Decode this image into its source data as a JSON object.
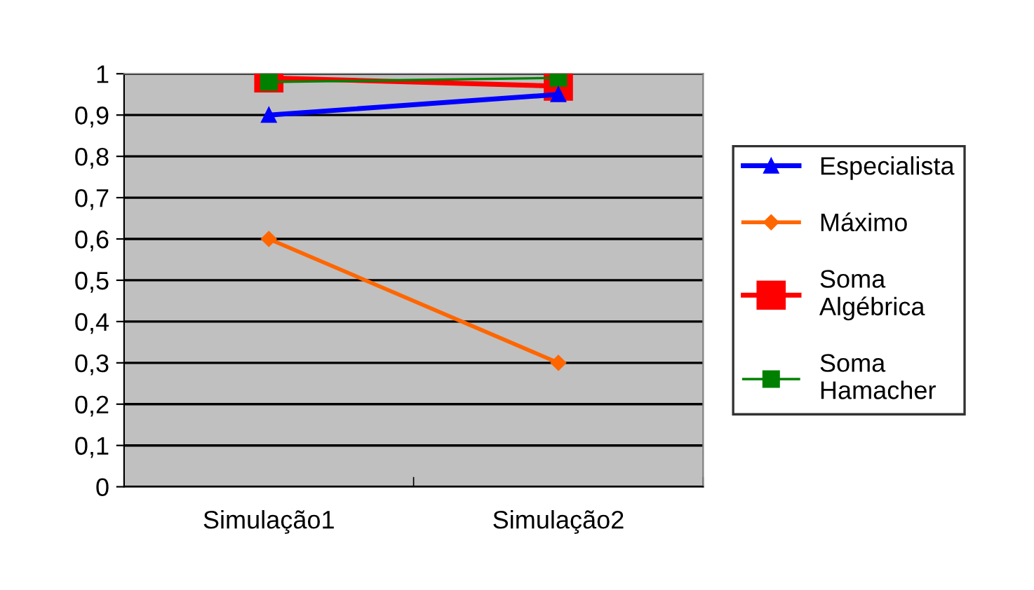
{
  "chart_data": {
    "type": "line",
    "categories": [
      "Simulação1",
      "Simulação2"
    ],
    "series": [
      {
        "name": "Especialista",
        "color": "#0000ff",
        "values": [
          0.9,
          0.95
        ],
        "marker": "triangle"
      },
      {
        "name": "Máximo",
        "color": "#ff6600",
        "values": [
          0.6,
          0.3
        ],
        "marker": "diamond"
      },
      {
        "name": "Soma\nAlgébrica",
        "color": "#ff0000",
        "values": [
          0.99,
          0.97
        ],
        "marker": "square"
      },
      {
        "name": "Soma\nHamacher",
        "color": "#008000",
        "values": [
          0.98,
          0.99
        ],
        "marker": "square"
      }
    ],
    "ylim": [
      0,
      1
    ],
    "yticks": [
      {
        "value": 0,
        "label": "0"
      },
      {
        "value": 0.1,
        "label": "0,1"
      },
      {
        "value": 0.2,
        "label": "0,2"
      },
      {
        "value": 0.3,
        "label": "0,3"
      },
      {
        "value": 0.4,
        "label": "0,4"
      },
      {
        "value": 0.5,
        "label": "0,5"
      },
      {
        "value": 0.6,
        "label": "0,6"
      },
      {
        "value": 0.7,
        "label": "0,7"
      },
      {
        "value": 0.8,
        "label": "0,8"
      },
      {
        "value": 0.9,
        "label": "0,9"
      },
      {
        "value": 1,
        "label": "1"
      }
    ],
    "grid": "y",
    "legend": "right",
    "line_style": "solid"
  }
}
